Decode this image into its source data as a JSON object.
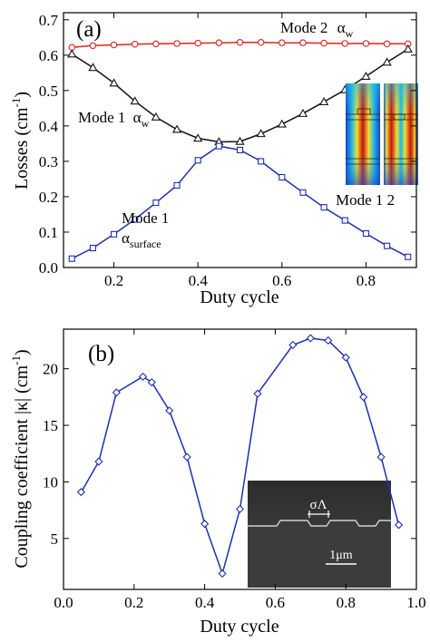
{
  "colors": {
    "mode2": "#e0231c",
    "mode1_aw": "#111111",
    "mode1_surface": "#1f2fae",
    "panel_b": "#1f2fae",
    "frame": "#000000"
  },
  "chart_data": [
    {
      "panel_label": "(a)",
      "type": "line",
      "xlabel": "Duty cycle",
      "ylabel": "Losses (cm",
      "ylabel_sup": "-1",
      "ylabel_close": ")",
      "xlim": [
        0.08,
        0.92
      ],
      "ylim": [
        0.0,
        0.72
      ],
      "x_ticks": [
        "0.2",
        "0.4",
        "0.6",
        "0.8"
      ],
      "x_tick_values": [
        0.2,
        0.4,
        0.6,
        0.8
      ],
      "y_ticks": [
        "0.0",
        "0.1",
        "0.2",
        "0.3",
        "0.4",
        "0.5",
        "0.6",
        "0.7"
      ],
      "y_tick_values": [
        0.0,
        0.1,
        0.2,
        0.3,
        0.4,
        0.5,
        0.6,
        0.7
      ],
      "series": [
        {
          "marker": "circle",
          "color": "#e0231c",
          "x": [
            0.1,
            0.15,
            0.2,
            0.25,
            0.3,
            0.35,
            0.4,
            0.45,
            0.5,
            0.55,
            0.6,
            0.65,
            0.7,
            0.75,
            0.8,
            0.85,
            0.9
          ],
          "y": [
            0.622,
            0.627,
            0.629,
            0.631,
            0.632,
            0.633,
            0.634,
            0.635,
            0.636,
            0.636,
            0.635,
            0.635,
            0.634,
            0.633,
            0.633,
            0.632,
            0.632
          ]
        },
        {
          "marker": "triangle",
          "color": "#111111",
          "x": [
            0.1,
            0.15,
            0.2,
            0.25,
            0.3,
            0.35,
            0.4,
            0.45,
            0.5,
            0.55,
            0.6,
            0.65,
            0.7,
            0.75,
            0.8,
            0.85,
            0.9
          ],
          "y": [
            0.603,
            0.565,
            0.521,
            0.47,
            0.425,
            0.39,
            0.365,
            0.355,
            0.356,
            0.378,
            0.405,
            0.435,
            0.468,
            0.502,
            0.54,
            0.58,
            0.617
          ]
        },
        {
          "marker": "square",
          "color": "#1f2fae",
          "x": [
            0.1,
            0.15,
            0.2,
            0.25,
            0.3,
            0.35,
            0.4,
            0.45,
            0.5,
            0.55,
            0.6,
            0.65,
            0.7,
            0.75,
            0.8,
            0.85,
            0.9
          ],
          "y": [
            0.025,
            0.055,
            0.094,
            0.136,
            0.183,
            0.232,
            0.303,
            0.343,
            0.332,
            0.3,
            0.255,
            0.212,
            0.17,
            0.133,
            0.096,
            0.061,
            0.03
          ]
        }
      ],
      "annotations": {
        "mode2_text": "Mode 2",
        "mode2_alpha": "α",
        "mode2_sub": "w",
        "mode1_aw_text": "Mode 1",
        "mode1_aw_alpha": "α",
        "mode1_aw_sub": "w",
        "mode1_surface_line1": "Mode 1",
        "mode1_surface_alpha": "α",
        "mode1_surface_sub": "surface",
        "inset_label": "Mode 1  2"
      }
    },
    {
      "panel_label": "(b)",
      "type": "line",
      "xlabel": "Duty cycle",
      "ylabel": "Coupling coefficient |κ| (cm",
      "ylabel_sup": "-1",
      "ylabel_close": ")",
      "xlim": [
        0.0,
        1.0
      ],
      "ylim": [
        0.5,
        23.5
      ],
      "x_ticks": [
        "0.0",
        "0.2",
        "0.4",
        "0.6",
        "0.8",
        "1.0"
      ],
      "x_tick_values": [
        0.0,
        0.2,
        0.4,
        0.6,
        0.8,
        1.0
      ],
      "y_ticks": [
        "5",
        "10",
        "15",
        "20"
      ],
      "y_tick_values": [
        5,
        10,
        15,
        20
      ],
      "series": [
        {
          "marker": "diamond",
          "color": "#1f2fae",
          "x": [
            0.05,
            0.1,
            0.15,
            0.225,
            0.25,
            0.3,
            0.35,
            0.4,
            0.45,
            0.5,
            0.55,
            0.65,
            0.7,
            0.75,
            0.8,
            0.85,
            0.9,
            0.95
          ],
          "y": [
            9.1,
            11.8,
            17.9,
            19.3,
            18.8,
            16.3,
            12.2,
            6.3,
            1.9,
            7.6,
            17.8,
            22.1,
            22.7,
            22.5,
            21.0,
            17.5,
            12.2,
            6.2
          ]
        }
      ],
      "annotations": {
        "inset_sigma": "σΛ",
        "inset_scale": "1μm"
      }
    }
  ]
}
